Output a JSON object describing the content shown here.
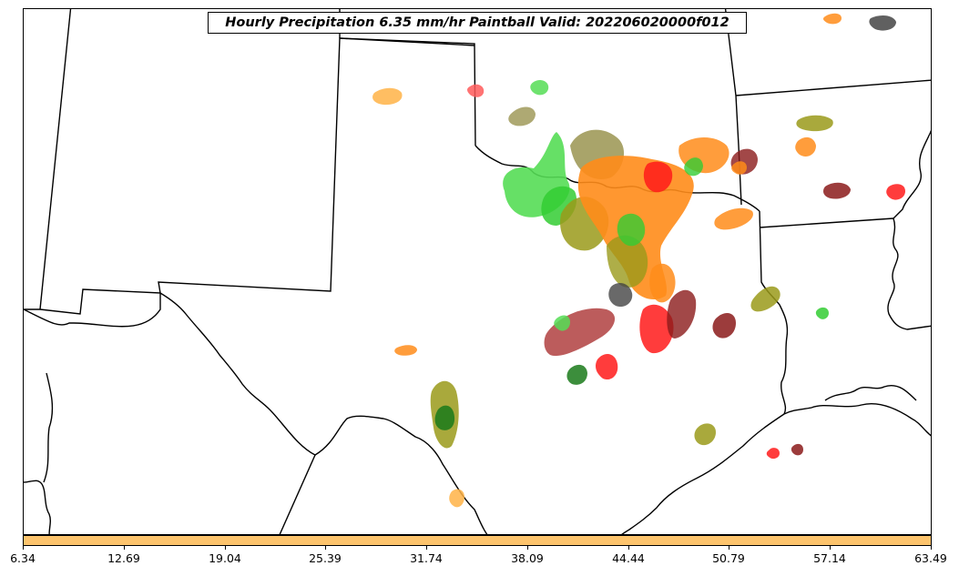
{
  "map": {
    "title": "Hourly Precipitation 6.35 mm/hr Paintball Valid: 202206020000f012"
  },
  "colorbar": {
    "fill_color": "#FDC46D",
    "min": 6.34,
    "max": 63.49,
    "ticks": [
      "6.34",
      "12.69",
      "19.04",
      "25.39",
      "31.74",
      "38.09",
      "44.44",
      "50.79",
      "57.14",
      "63.49"
    ]
  },
  "colors": {
    "member_red": "#ff1a1a",
    "member_orange": "#ff8c1a",
    "member_light_orange": "#ffb347",
    "member_green": "#33cc33",
    "member_light_green": "#55dd55",
    "member_dark_green": "#1a7a1a",
    "member_olive": "#9a9a1a",
    "member_khaki": "#a09a5a",
    "member_dark_red": "#8b1a1a",
    "member_brown_red": "#b04040",
    "member_dark_gray": "#444444",
    "member_coral": "#ff5a5a"
  }
}
